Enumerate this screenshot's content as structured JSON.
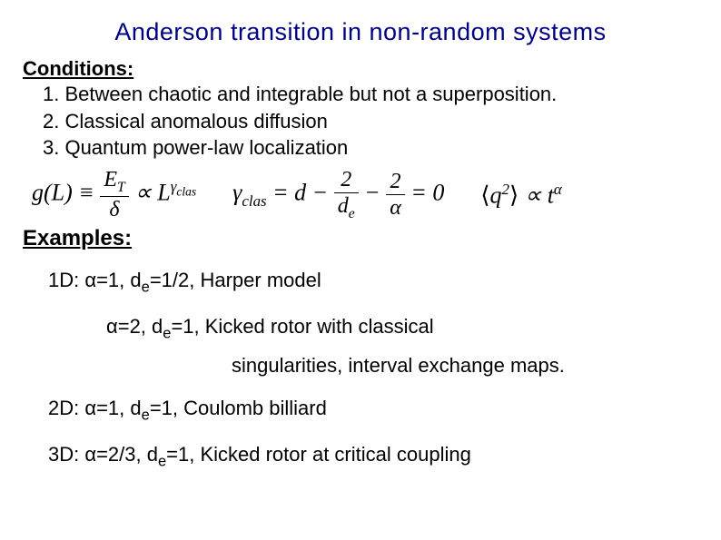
{
  "title": "Anderson transition in non-random systems",
  "conditions": {
    "label": "Conditions:",
    "items": [
      "1. Between chaotic and integrable but not a superposition.",
      "2. Classical anomalous  diffusion",
      "3.  Quantum power-law localization"
    ]
  },
  "formulas": {
    "f1_lhs": "g(L) ≡",
    "f1_num": "E",
    "f1_num_sub": "T",
    "f1_den": "δ",
    "f1_prop": "∝ L",
    "f1_exp": "γ",
    "f1_exp_sub": "clas",
    "f2_lhs": "γ",
    "f2_lhs_sub": "clas",
    "f2_eq": " = d − ",
    "f2_num": "2",
    "f2_den": "d",
    "f2_den_sub": "e",
    "f2_minus": " − ",
    "f2_num2": "2",
    "f2_den2": "α",
    "f2_end": " = 0",
    "f3_open": "⟨",
    "f3_q": "q",
    "f3_q_exp": "2",
    "f3_close": "⟩",
    "f3_prop": " ∝ t",
    "f3_exp": "α"
  },
  "examples": {
    "label": "Examples:",
    "lines": [
      {
        "prefix": "1D:  ",
        "alpha": "α",
        "rest1": "=1, d",
        "sub": "e",
        "rest2": "=1/2,  Harper model"
      },
      {
        "prefix": "",
        "alpha": "α",
        "rest1": "=2, d",
        "sub": "e",
        "rest2": "=1,  Kicked rotor with  classical"
      },
      {
        "text": "singularities, interval exchange maps."
      },
      {
        "prefix": "2D: ",
        "alpha": "α",
        "rest1": "=1, d",
        "sub": "e",
        "rest2": "=1,   Coulomb billiard"
      },
      {
        "prefix": "3D: ",
        "alpha": "α",
        "rest1": "=2/3, d",
        "sub": "e",
        "rest2": "=1, Kicked rotor at critical coupling"
      }
    ]
  },
  "colors": {
    "title": "#000080",
    "text": "#000000",
    "background": "#ffffff"
  },
  "typography": {
    "title_fontsize": 27,
    "body_fontsize": 22,
    "formula_fontsize": 26,
    "title_font": "Verdana",
    "body_font": "Arial",
    "formula_font": "Times New Roman"
  }
}
